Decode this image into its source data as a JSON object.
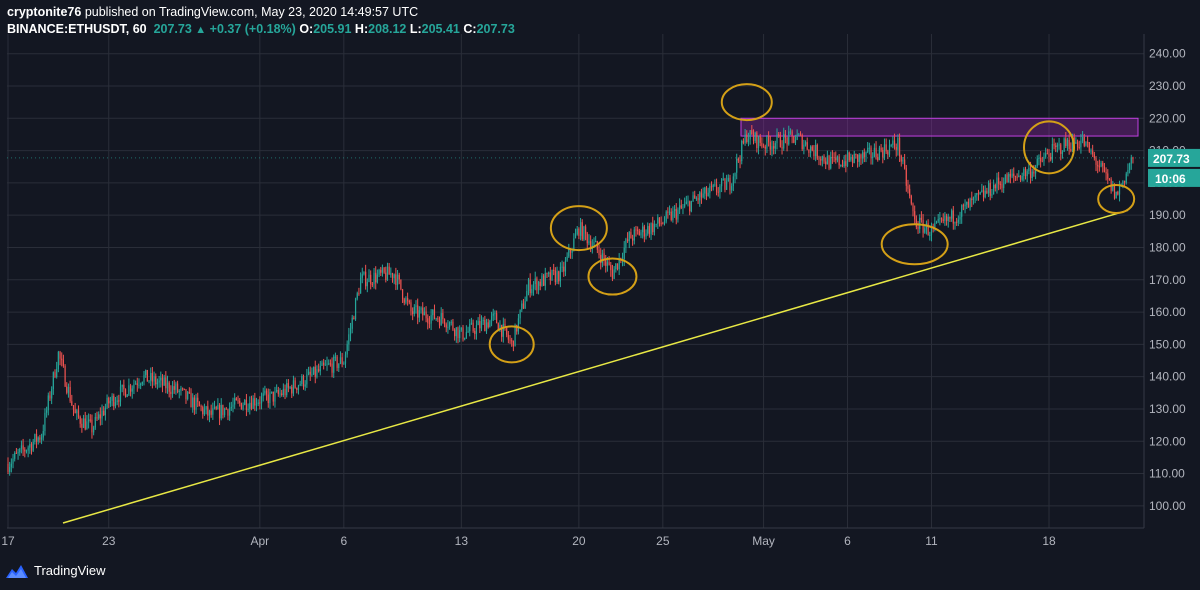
{
  "header": {
    "author": "cryptonite76",
    "published_text": " published on TradingView.com, May 23, 2020 14:49:57 UTC",
    "symbol": "BINANCE:ETHUSDT, 60",
    "last_price": "207.73",
    "change": "+0.37 (+0.18%)",
    "open_label": "O:",
    "open_value": "205.91",
    "high_label": "H:",
    "high_value": "208.12",
    "low_label": "L:",
    "low_value": "205.41",
    "close_label": "C:",
    "close_value": "207.73"
  },
  "price_badge": "207.73",
  "time_badge": "10:06",
  "branding": "TradingView",
  "colors": {
    "background": "#131722",
    "grid": "#2a2e39",
    "up": "#26a69a",
    "down": "#ef5350",
    "trendline": "#e8e845",
    "circle": "#d4a017",
    "resistance_fill": "#9c27b0",
    "badge": "#26a69a"
  },
  "chart_data": {
    "type": "candlestick",
    "y_axis_labels": [
      "240.00",
      "230.00",
      "220.00",
      "210.00",
      "200.00",
      "190.00",
      "180.00",
      "170.00",
      "160.00",
      "150.00",
      "140.00",
      "130.00",
      "120.00",
      "110.00",
      "100.00"
    ],
    "ylim": [
      95,
      243
    ],
    "x_axis_labels": [
      "17",
      "23",
      "Apr",
      "6",
      "13",
      "20",
      "25",
      "May",
      "6",
      "11",
      "18"
    ],
    "price_path": [
      [
        "17",
        113
      ],
      [
        "19",
        122
      ],
      [
        "20",
        147
      ],
      [
        "21",
        128
      ],
      [
        "22",
        124
      ],
      [
        "23",
        132
      ],
      [
        "25",
        140
      ],
      [
        "27",
        136
      ],
      [
        "29",
        128
      ],
      [
        "31",
        132
      ],
      [
        "Apr 2",
        134
      ],
      [
        "Apr 4",
        140
      ],
      [
        "Apr 5",
        143
      ],
      [
        "Apr 6",
        145
      ],
      [
        "Apr 7",
        170
      ],
      [
        "Apr 9",
        172
      ],
      [
        "Apr 10",
        160
      ],
      [
        "Apr 12",
        158
      ],
      [
        "Apr 13",
        153
      ],
      [
        "Apr 15",
        158
      ],
      [
        "Apr 16",
        150
      ],
      [
        "Apr 17",
        168
      ],
      [
        "Apr 19",
        172
      ],
      [
        "Apr 20",
        186
      ],
      [
        "Apr 21",
        180
      ],
      [
        "Apr 22",
        172
      ],
      [
        "Apr 23",
        183
      ],
      [
        "Apr 25",
        188
      ],
      [
        "Apr 27",
        195
      ],
      [
        "Apr 29",
        200
      ],
      [
        "Apr 30",
        215
      ],
      [
        "May 1",
        212
      ],
      [
        "May 3",
        214
      ],
      [
        "May 5",
        206
      ],
      [
        "May 7",
        208
      ],
      [
        "May 9",
        212
      ],
      [
        "May 10",
        188
      ],
      [
        "May 11",
        185
      ],
      [
        "May 13",
        192
      ],
      [
        "May 15",
        200
      ],
      [
        "May 17",
        204
      ],
      [
        "May 18",
        209
      ],
      [
        "May 19",
        212
      ],
      [
        "May 20",
        213
      ],
      [
        "May 21",
        205
      ],
      [
        "May 22",
        196
      ],
      [
        "May 23",
        207.73
      ]
    ],
    "last_price": 207.73,
    "resistance_zone": [
      214.5,
      220
    ],
    "trendline": [
      [
        "Mar 19",
        95
      ],
      [
        "May 23",
        191.5
      ]
    ],
    "highlighted_points": [
      [
        "Apr 16",
        150
      ],
      [
        "Apr 20",
        186
      ],
      [
        "Apr 22",
        171
      ],
      [
        "Apr 30",
        225
      ],
      [
        "May 10",
        181
      ],
      [
        "May 18",
        211
      ],
      [
        "May 22",
        195
      ]
    ],
    "grid": true
  }
}
